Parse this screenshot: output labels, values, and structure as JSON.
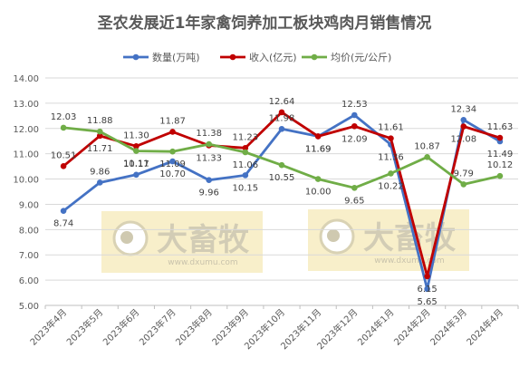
{
  "chart_data": {
    "type": "line",
    "title": "圣农发展近1年家禽饲养加工板块鸡肉月销售情况",
    "categories": [
      "2023年4月",
      "2023年5月",
      "2023年6月",
      "2023年7月",
      "2023年8月",
      "2023年9月",
      "2023年10月",
      "2023年11月",
      "2023年12月",
      "2024年1月",
      "2024年2月",
      "2024年3月",
      "2024年4月"
    ],
    "ylim": [
      5.0,
      14.0
    ],
    "yticks": [
      "5.00",
      "6.00",
      "7.00",
      "8.00",
      "9.00",
      "10.00",
      "11.00",
      "12.00",
      "13.00",
      "14.00"
    ],
    "grid": true,
    "legend_position": "top",
    "series": [
      {
        "name": "数量(万吨)",
        "color": "#4472C4",
        "values": [
          8.74,
          9.86,
          10.17,
          10.7,
          9.96,
          10.15,
          11.98,
          11.69,
          12.53,
          11.36,
          5.65,
          12.34,
          11.49
        ],
        "labels": [
          "8.74",
          "9.86",
          "10.17",
          "10.70",
          "9.96",
          "10.15",
          "11.98",
          "11.69",
          "12.53",
          "11.36",
          "5.65",
          "12.34",
          "11.49"
        ]
      },
      {
        "name": "收入(亿元)",
        "color": "#C00000",
        "values": [
          10.51,
          11.71,
          11.3,
          11.87,
          11.33,
          11.23,
          12.64,
          11.69,
          12.09,
          11.61,
          6.15,
          12.08,
          11.63
        ],
        "labels": [
          "10.51",
          "11.71",
          "11.30",
          "11.87",
          "11.33",
          "11.23",
          "12.64",
          "11.69",
          "12.09",
          "11.61",
          "6.15",
          "12.08",
          "11.63"
        ]
      },
      {
        "name": "均价(元/公斤)",
        "color": "#70AD47",
        "values": [
          12.03,
          11.88,
          11.11,
          11.09,
          11.38,
          11.06,
          10.55,
          10.0,
          9.65,
          10.22,
          10.87,
          9.79,
          10.12
        ],
        "labels": [
          "12.03",
          "11.88",
          "11.11",
          "11.09",
          "11.38",
          "11.06",
          "10.55",
          "10.00",
          "9.65",
          "10.22",
          "10.87",
          "9.79",
          "10.12"
        ]
      }
    ]
  },
  "watermark": {
    "brand": "大畜牧",
    "url": "www.dxumu.com"
  }
}
